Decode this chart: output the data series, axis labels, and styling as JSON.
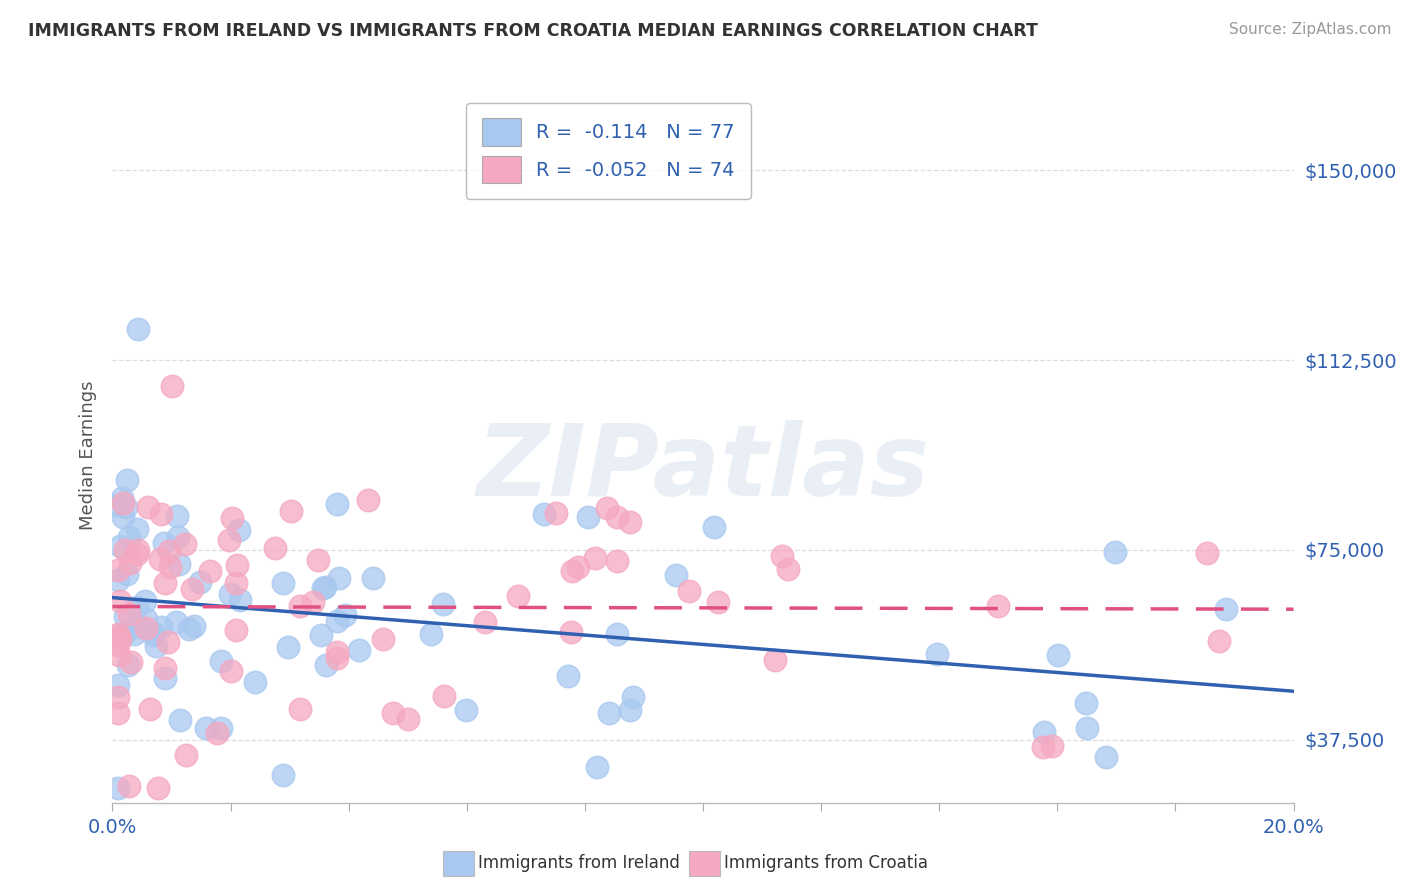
{
  "title": "IMMIGRANTS FROM IRELAND VS IMMIGRANTS FROM CROATIA MEDIAN EARNINGS CORRELATION CHART",
  "source": "Source: ZipAtlas.com",
  "ylabel": "Median Earnings",
  "xlim": [
    0.0,
    0.2
  ],
  "ylim": [
    25000,
    162500
  ],
  "yticks": [
    37500,
    75000,
    112500,
    150000
  ],
  "ytick_labels": [
    "$37,500",
    "$75,000",
    "$112,500",
    "$150,000"
  ],
  "xtick_vals": [
    0.0,
    0.02,
    0.04,
    0.06,
    0.08,
    0.1,
    0.12,
    0.14,
    0.16,
    0.18,
    0.2
  ],
  "ireland_color": "#A8C8F0",
  "croatia_color": "#F5A8C0",
  "ireland_line_color": "#3060B0",
  "croatia_line_color": "#E05080",
  "ireland_R": -0.114,
  "ireland_N": 77,
  "croatia_R": -0.052,
  "croatia_N": 74,
  "watermark_text": "ZIPatlas",
  "bg_color": "#FFFFFF",
  "axis_label_color": "#3060B0",
  "title_color": "#333333",
  "source_color": "#999999",
  "legend_text_color": "#3060B0",
  "grid_color": "#DDDDDD",
  "ireland_intercept": 65000,
  "ireland_slope": -75000,
  "croatia_intercept": 62000,
  "croatia_slope": -60000
}
